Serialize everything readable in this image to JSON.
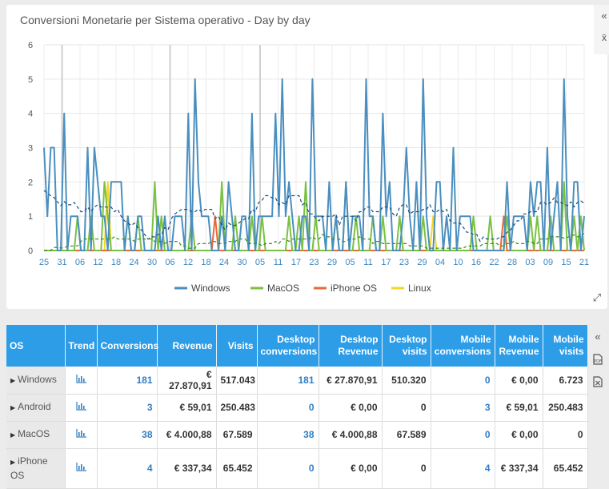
{
  "chart": {
    "title": "Conversioni Monetarie per Sistema operativo - Day by day",
    "collapse_icon": "«",
    "menu_icon": "x̄",
    "expand_icon": "⤢"
  },
  "chart_data": {
    "type": "line",
    "title": "Conversioni Monetarie per Sistema operativo - Day by day",
    "ylim": [
      0,
      6
    ],
    "yticks": [
      "0",
      "1",
      "2",
      "3",
      "4",
      "5",
      "6"
    ],
    "xticks": [
      "25",
      "31",
      "06",
      "12",
      "18",
      "24",
      "30",
      "06",
      "12",
      "18",
      "24",
      "30",
      "05",
      "11",
      "17",
      "23",
      "29",
      "05",
      "11",
      "17",
      "23",
      "29",
      "04",
      "10",
      "16",
      "22",
      "28",
      "03",
      "09",
      "15",
      "21"
    ],
    "grid": true,
    "legend_position": "bottom",
    "series": [
      {
        "name": "Windows",
        "color": "#4a8fbf",
        "values": [
          3,
          1,
          3,
          3,
          0,
          0,
          4,
          0,
          1,
          1,
          1,
          0,
          0,
          3,
          0,
          3,
          2,
          1,
          1,
          0,
          2,
          2,
          2,
          2,
          0,
          1,
          0,
          0,
          1,
          1,
          0,
          0,
          0,
          0,
          1,
          0,
          1,
          0,
          0,
          1,
          1,
          1,
          0,
          4,
          0,
          5,
          2,
          1,
          1,
          1,
          0,
          0,
          0,
          1,
          0,
          2,
          1,
          0,
          0,
          1,
          1,
          0,
          4,
          0,
          1,
          1,
          1,
          1,
          1,
          4,
          1,
          5,
          1,
          2,
          1,
          0,
          0,
          1,
          1,
          0,
          5,
          1,
          1,
          1,
          0,
          2,
          0,
          1,
          0,
          0,
          2,
          0,
          1,
          1,
          1,
          0,
          5,
          1,
          1,
          0,
          0,
          4,
          1,
          2,
          0,
          0,
          0,
          1,
          3,
          1,
          0,
          2,
          0,
          5,
          1,
          0,
          0,
          2,
          2,
          0,
          1,
          0,
          3,
          0,
          1,
          1,
          1,
          1,
          0,
          0,
          0,
          0,
          0,
          0,
          0,
          0,
          0,
          0,
          2,
          0,
          1,
          1,
          1,
          1,
          0,
          2,
          1,
          2,
          2,
          0,
          3,
          0,
          1,
          2,
          0,
          5,
          1,
          0,
          2,
          2,
          0,
          1
        ]
      },
      {
        "name": "MacOS",
        "color": "#7ac143",
        "values": [
          0,
          0,
          0,
          0,
          0,
          0,
          0,
          0,
          0,
          0,
          1,
          0,
          0,
          0,
          1,
          0,
          0,
          0,
          2,
          1,
          0,
          0,
          0,
          0,
          0,
          1,
          0,
          0,
          1,
          0,
          0,
          0,
          0,
          2,
          0,
          1,
          0,
          0,
          0,
          0,
          0,
          0,
          0,
          0,
          1,
          0,
          0,
          0,
          0,
          0,
          0,
          0,
          0,
          2,
          0,
          0,
          0,
          1,
          0,
          0,
          0,
          0,
          1,
          0,
          0,
          1,
          0,
          0,
          0,
          0,
          0,
          0,
          0,
          1,
          0,
          0,
          1,
          0,
          2,
          0,
          0,
          1,
          0,
          0,
          0,
          0,
          0,
          1,
          0,
          0,
          2,
          0,
          0,
          1,
          0,
          0,
          0,
          0,
          1,
          0,
          0,
          1,
          0,
          0,
          0,
          0,
          1,
          0,
          0,
          0,
          0,
          0,
          0,
          1,
          0,
          0,
          0,
          0,
          0,
          0,
          0,
          0,
          0,
          0,
          0,
          0,
          0,
          0,
          1,
          0,
          0,
          0,
          0,
          1,
          0,
          0,
          0,
          0,
          1,
          0,
          0,
          0,
          0,
          0,
          0,
          1,
          0,
          1,
          0,
          0,
          0,
          1,
          0,
          0,
          0,
          2,
          0,
          0,
          1,
          0,
          1,
          0
        ]
      },
      {
        "name": "iPhone OS",
        "color": "#e8693b",
        "values": [
          0,
          0,
          0,
          0,
          0,
          0,
          0,
          0,
          0,
          0,
          0,
          0,
          0,
          0,
          0,
          0,
          0,
          0,
          0,
          0,
          0,
          0,
          0,
          0,
          0,
          0,
          0,
          0,
          0,
          0,
          0,
          0,
          0,
          0,
          0,
          0,
          0,
          0,
          0,
          0,
          0,
          0,
          0,
          0,
          0,
          0,
          0,
          0,
          0,
          0,
          0,
          1,
          0,
          0,
          0,
          0,
          0,
          0,
          0,
          0,
          0,
          0,
          0,
          0,
          0,
          0,
          0,
          0,
          0,
          0,
          0,
          0,
          0,
          0,
          0,
          0,
          0,
          0,
          0,
          0,
          0,
          0,
          0,
          0,
          0,
          0,
          0,
          0,
          0,
          0,
          0,
          0,
          0,
          0,
          0,
          0,
          0,
          0,
          0,
          0,
          0,
          0,
          0,
          0,
          0,
          0,
          0,
          0,
          0,
          0,
          0,
          0,
          0,
          0,
          0,
          0,
          0,
          0,
          0,
          0,
          0,
          0,
          0,
          0,
          0,
          0,
          0,
          0,
          0,
          0,
          0,
          0,
          0,
          0,
          0,
          0,
          0,
          1,
          0,
          0,
          0,
          0,
          0,
          0,
          0,
          0,
          0,
          0,
          0,
          0,
          0,
          0,
          0,
          0,
          0,
          0,
          0,
          0,
          0,
          0,
          0,
          0
        ]
      },
      {
        "name": "Linux",
        "color": "#f5d629",
        "values": [
          0,
          0,
          0,
          0,
          0,
          0,
          0,
          0,
          0,
          0,
          0,
          0,
          0,
          0,
          0,
          0,
          0,
          0,
          0,
          2,
          0,
          0,
          0,
          0,
          0,
          0,
          0,
          0,
          0,
          0,
          0,
          0,
          0,
          0,
          0,
          0,
          0,
          0,
          0,
          0,
          0,
          0,
          0,
          0,
          0,
          0,
          0,
          0,
          0,
          0,
          0,
          0,
          0,
          0,
          0,
          0,
          0,
          0,
          0,
          0,
          0,
          0,
          0,
          0,
          0,
          0,
          0,
          0,
          0,
          0,
          0,
          0,
          0,
          0,
          0,
          0,
          0,
          0,
          0,
          0,
          0,
          0,
          0,
          0,
          0,
          0,
          0,
          0,
          0,
          0,
          0,
          0,
          0,
          0,
          0,
          0,
          0,
          0,
          0,
          0,
          0,
          0,
          0,
          0,
          0,
          0,
          0,
          0,
          0,
          0,
          0,
          0,
          0,
          0,
          0,
          0,
          1,
          0,
          0,
          0,
          0,
          0,
          0,
          0,
          0,
          0,
          0,
          0,
          0,
          0,
          0,
          0,
          0,
          0,
          0,
          0,
          0,
          0,
          0,
          0,
          0,
          0,
          0,
          0,
          0,
          0,
          0,
          0,
          0,
          0,
          0,
          0,
          0,
          0,
          0,
          0,
          0,
          0,
          0,
          0,
          0,
          0
        ]
      }
    ]
  },
  "table": {
    "headers": {
      "os": "OS",
      "trend": "Trend",
      "conversions": "Conversions",
      "revenue": "Revenue",
      "visits": "Visits",
      "desktop_conversions": "Desktop conversions",
      "desktop_revenue": "Desktop Revenue",
      "desktop_visits": "Desktop visits",
      "mobile_conversions": "Mobile conversions",
      "mobile_revenue": "Mobile Revenue",
      "mobile_visits": "Mobile visits"
    },
    "rows": [
      {
        "os": "Windows",
        "conversions": "181",
        "revenue": "€ 27.870,91",
        "visits": "517.043",
        "desktop_conversions": "181",
        "desktop_revenue": "€ 27.870,91",
        "desktop_visits": "510.320",
        "mobile_conversions": "0",
        "mobile_revenue": "€ 0,00",
        "mobile_visits": "6.723"
      },
      {
        "os": "Android",
        "conversions": "3",
        "revenue": "€ 59,01",
        "visits": "250.483",
        "desktop_conversions": "0",
        "desktop_revenue": "€ 0,00",
        "desktop_visits": "0",
        "mobile_conversions": "3",
        "mobile_revenue": "€ 59,01",
        "mobile_visits": "250.483"
      },
      {
        "os": "MacOS",
        "conversions": "38",
        "revenue": "€ 4.000,88",
        "visits": "67.589",
        "desktop_conversions": "38",
        "desktop_revenue": "€ 4.000,88",
        "desktop_visits": "67.589",
        "mobile_conversions": "0",
        "mobile_revenue": "€ 0,00",
        "mobile_visits": "0"
      },
      {
        "os": "iPhone OS",
        "conversions": "4",
        "revenue": "€ 337,34",
        "visits": "65.452",
        "desktop_conversions": "0",
        "desktop_revenue": "€ 0,00",
        "desktop_visits": "0",
        "mobile_conversions": "4",
        "mobile_revenue": "€ 337,34",
        "mobile_visits": "65.452"
      }
    ],
    "side_icons": [
      "collapse-icon",
      "pdf-icon",
      "excel-icon"
    ]
  }
}
